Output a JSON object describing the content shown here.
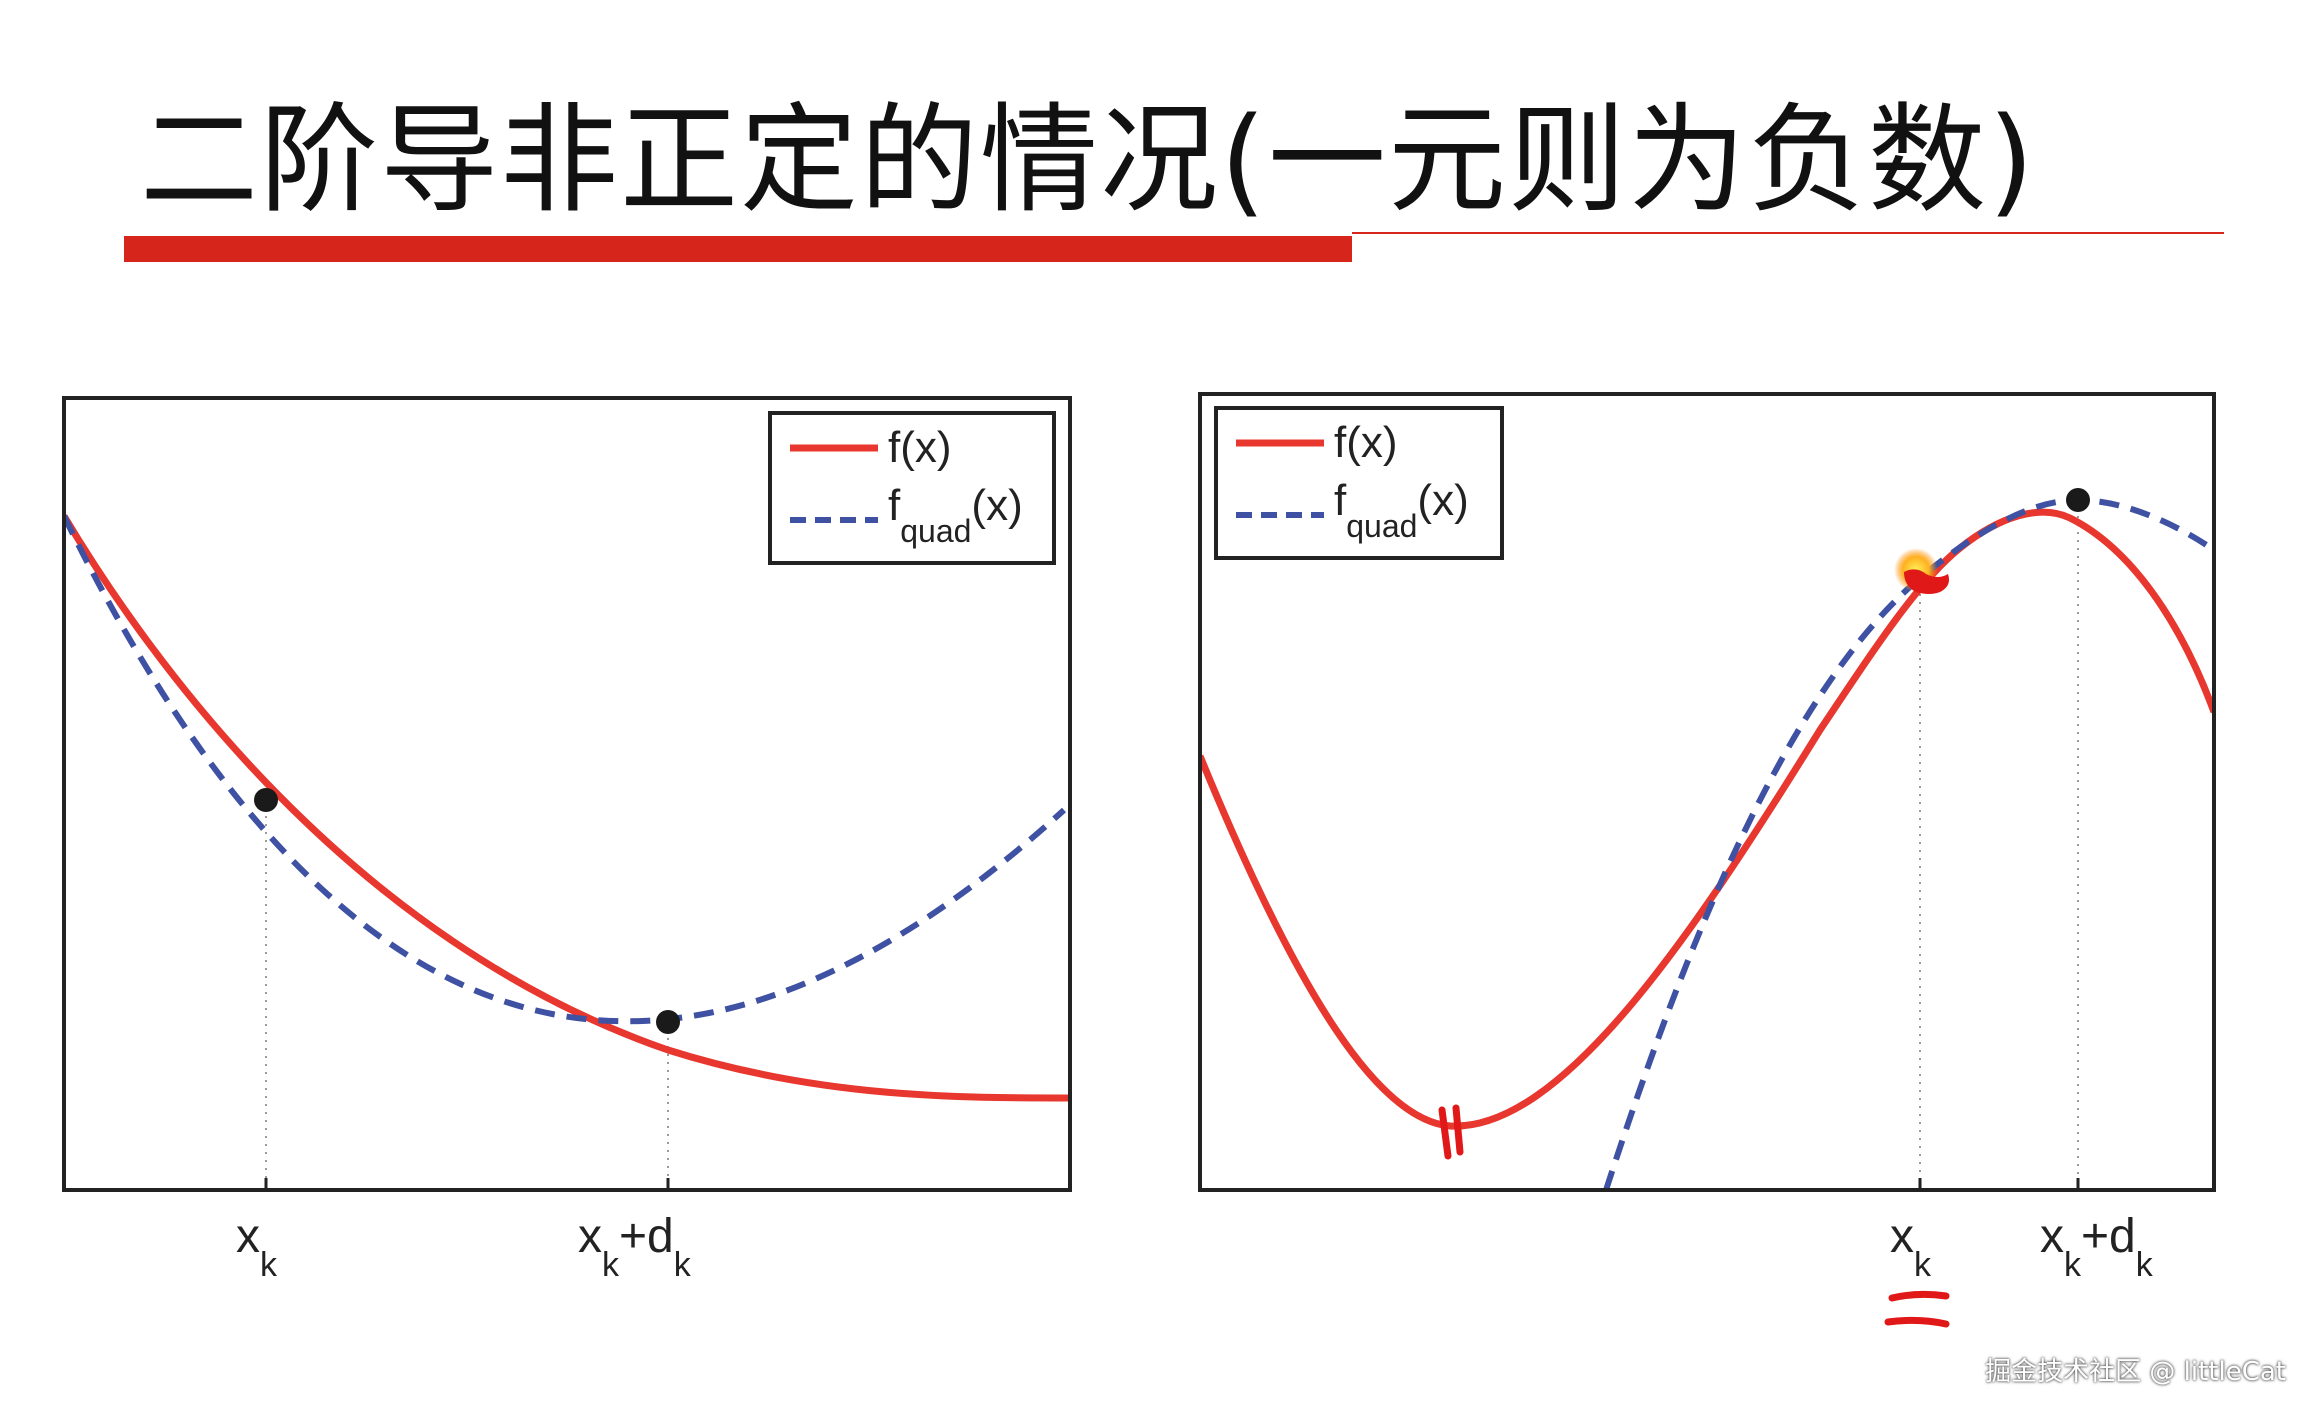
{
  "slide": {
    "title": "二阶导非正定的情况(一元则为负数)",
    "watermark": "掘金技术社区 @ littleCat"
  },
  "colors": {
    "f": "#e8372e",
    "fquad": "#3f51a3",
    "accent": "#d6261c",
    "axis": "#222222"
  },
  "legend": {
    "f_label": "f(x)",
    "fquad_base": "f",
    "fquad_sub": "quad",
    "fquad_arg": "(x)"
  },
  "left_plot": {
    "tick_x": "x",
    "tick_x_sub": "k",
    "tick_xd": "x",
    "tick_xd_sub": "k",
    "tick_xd_plus": "+d",
    "tick_xd_sub2": "k"
  },
  "right_plot": {
    "tick_x": "x",
    "tick_x_sub": "k",
    "tick_xd": "x",
    "tick_xd_sub": "k",
    "tick_xd_plus": "+d",
    "tick_xd_sub2": "k"
  }
}
